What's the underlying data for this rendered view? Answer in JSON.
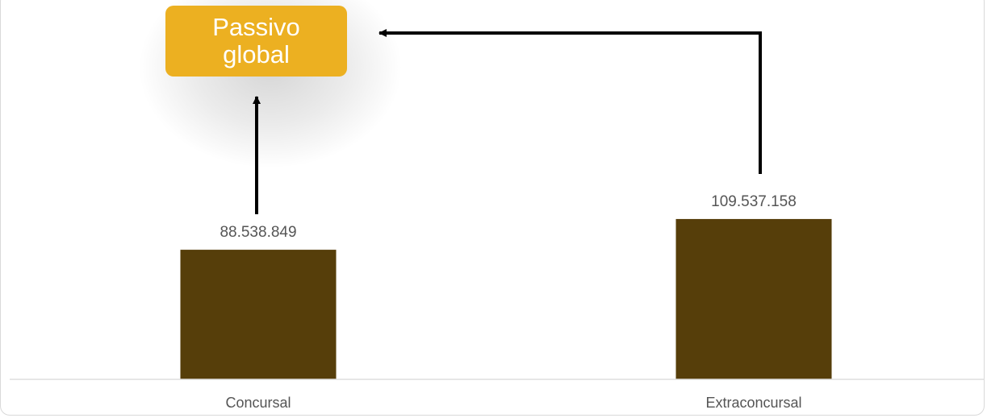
{
  "chart_data": {
    "type": "bar",
    "categories": [
      "Concursal",
      "Extraconcursal"
    ],
    "values": [
      88538849,
      109537158
    ],
    "value_labels": [
      "88.538.849",
      "109.537.158"
    ],
    "ylim": [
      0,
      115000000
    ],
    "grid": false,
    "annotation": "Passivo global"
  },
  "colors": {
    "bar": "#563e0a",
    "badge": "#ecb021",
    "axis": "#dddddd",
    "text": "#555555",
    "arrow": "#000000"
  },
  "annotation": {
    "label_line1": "Passivo",
    "label_line2": "global"
  }
}
